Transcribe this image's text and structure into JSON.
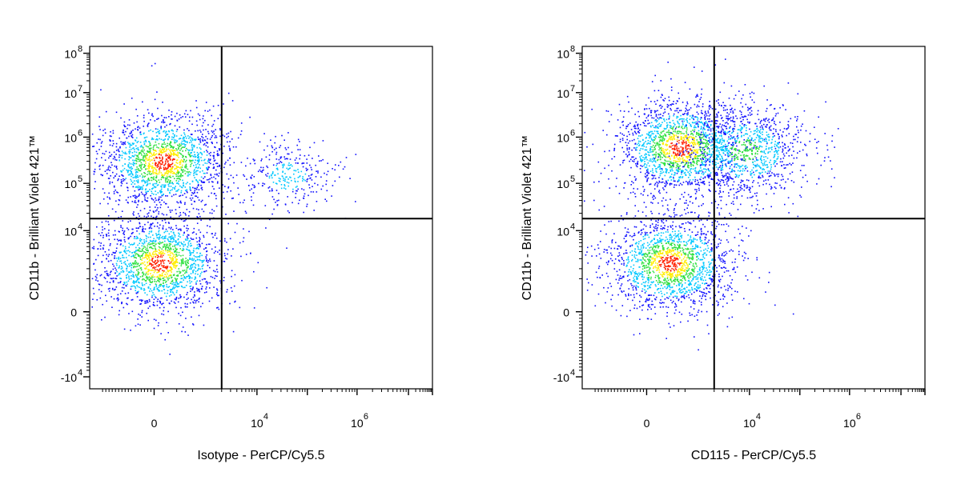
{
  "chart_data": [
    {
      "type": "scatter",
      "subtype": "flow-cytometry-density-dot-plot",
      "xlabel": "Isotype - PerCP/Cy5.5",
      "ylabel": "CD11b - Brilliant Violet 421™",
      "x_scale": "biexponential",
      "y_scale": "biexponential",
      "x_ticks": [
        {
          "value": 0,
          "base": "0",
          "exp": ""
        },
        {
          "value": 10000,
          "base": "10",
          "exp": "4"
        },
        {
          "value": 1000000,
          "base": "10",
          "exp": "6"
        }
      ],
      "y_ticks": [
        {
          "value": -10000,
          "base": "-10",
          "exp": "4"
        },
        {
          "value": 0,
          "base": "0",
          "exp": ""
        },
        {
          "value": 10000,
          "base": "10",
          "exp": "4"
        },
        {
          "value": 100000,
          "base": "10",
          "exp": "5"
        },
        {
          "value": 1000000,
          "base": "10",
          "exp": "6"
        },
        {
          "value": 10000000,
          "base": "10",
          "exp": "7"
        },
        {
          "value": 100000000,
          "base": "10",
          "exp": "8"
        }
      ],
      "quadrant_gate": {
        "x": 2000,
        "y": 15000
      },
      "populations": [
        {
          "x_center": 250,
          "y_center": 300000,
          "density": "high"
        },
        {
          "x_center": 150,
          "y_center": 1500,
          "density": "high"
        },
        {
          "x_center": 40000,
          "y_center": 150000,
          "density": "low"
        }
      ]
    },
    {
      "type": "scatter",
      "subtype": "flow-cytometry-density-dot-plot",
      "xlabel": "CD115 - PerCP/Cy5.5",
      "ylabel": "CD11b - Brilliant Violet 421™",
      "x_scale": "biexponential",
      "y_scale": "biexponential",
      "x_ticks": [
        {
          "value": 0,
          "base": "0",
          "exp": ""
        },
        {
          "value": 10000,
          "base": "10",
          "exp": "4"
        },
        {
          "value": 1000000,
          "base": "10",
          "exp": "6"
        }
      ],
      "y_ticks": [
        {
          "value": -10000,
          "base": "-10",
          "exp": "4"
        },
        {
          "value": 0,
          "base": "0",
          "exp": ""
        },
        {
          "value": 10000,
          "base": "10",
          "exp": "4"
        },
        {
          "value": 100000,
          "base": "10",
          "exp": "5"
        },
        {
          "value": 1000000,
          "base": "10",
          "exp": "6"
        },
        {
          "value": 10000000,
          "base": "10",
          "exp": "7"
        },
        {
          "value": 100000000,
          "base": "10",
          "exp": "8"
        }
      ],
      "quadrant_gate": {
        "x": 2000,
        "y": 15000
      },
      "populations": [
        {
          "x_center": 800,
          "y_center": 600000,
          "density": "high"
        },
        {
          "x_center": 500,
          "y_center": 1500,
          "density": "high"
        },
        {
          "x_center": 8000,
          "y_center": 500000,
          "density": "medium"
        }
      ]
    }
  ],
  "colors": {
    "low": "#1010ff",
    "mid_low": "#00c8ff",
    "mid": "#30e040",
    "mid_high": "#ffee00",
    "high": "#ff2000",
    "axis": "#000000",
    "gate": "#000000"
  }
}
